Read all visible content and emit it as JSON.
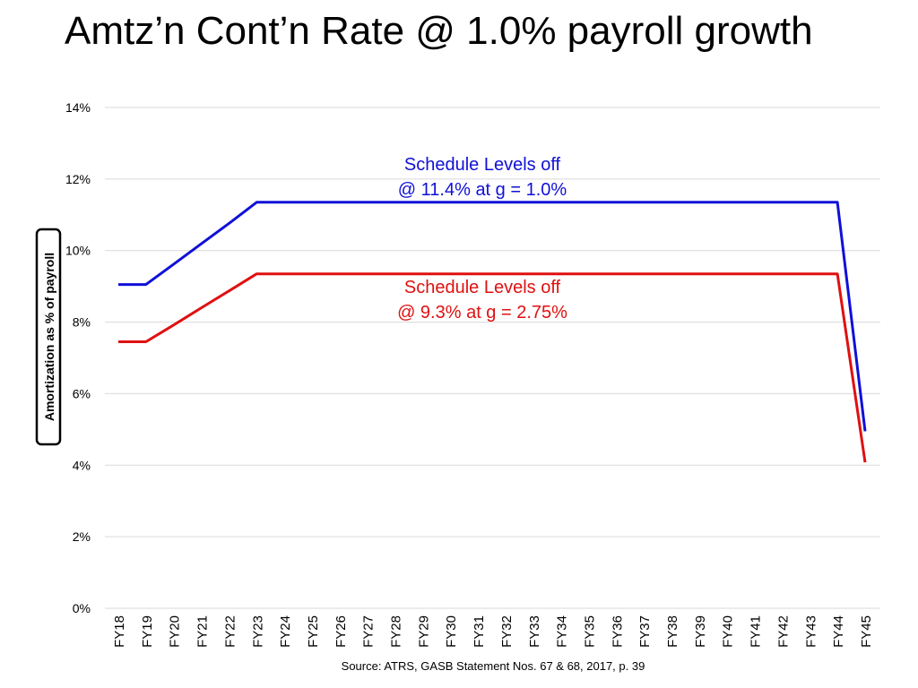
{
  "title": "Amtz’n Cont’n Rate @ 1.0% payroll growth",
  "source": "Source:  ATRS, GASB Statement Nos. 67 & 68, 2017, p. 39",
  "colors": {
    "blue": "#1010d8",
    "red": "#e01010",
    "grid": "#d9d9d9",
    "text": "#000000"
  },
  "chart_data": {
    "type": "line",
    "ylabel": "Amortization as % of payroll",
    "ylim": [
      0,
      14
    ],
    "ytick_step": 2,
    "yticks": [
      "0%",
      "2%",
      "4%",
      "6%",
      "8%",
      "10%",
      "12%",
      "14%"
    ],
    "grid": true,
    "categories": [
      "FY18",
      "FY19",
      "FY20",
      "FY21",
      "FY22",
      "FY23",
      "FY24",
      "FY25",
      "FY26",
      "FY27",
      "FY28",
      "FY29",
      "FY30",
      "FY31",
      "FY32",
      "FY33",
      "FY34",
      "FY35",
      "FY36",
      "FY37",
      "FY38",
      "FY39",
      "FY40",
      "FY41",
      "FY42",
      "FY43",
      "FY44",
      "FY45"
    ],
    "series": [
      {
        "color": "#1010d8",
        "values": [
          9.05,
          9.05,
          9.62,
          10.19,
          10.76,
          11.35,
          11.35,
          11.35,
          11.35,
          11.35,
          11.35,
          11.35,
          11.35,
          11.35,
          11.35,
          11.35,
          11.35,
          11.35,
          11.35,
          11.35,
          11.35,
          11.35,
          11.35,
          11.35,
          11.35,
          11.35,
          11.35,
          4.95
        ]
      },
      {
        "color": "#e01010",
        "values": [
          7.45,
          7.45,
          7.92,
          8.4,
          8.87,
          9.35,
          9.35,
          9.35,
          9.35,
          9.35,
          9.35,
          9.35,
          9.35,
          9.35,
          9.35,
          9.35,
          9.35,
          9.35,
          9.35,
          9.35,
          9.35,
          9.35,
          9.35,
          9.35,
          9.35,
          9.35,
          9.35,
          4.08
        ]
      }
    ],
    "annotations": [
      {
        "lines": [
          "Schedule Levels off",
          "@ 11.4% at g = 1.0%"
        ],
        "color": "#1010d8"
      },
      {
        "lines": [
          "Schedule Levels off",
          "@ 9.3% at g = 2.75%"
        ],
        "color": "#e01010"
      }
    ]
  }
}
